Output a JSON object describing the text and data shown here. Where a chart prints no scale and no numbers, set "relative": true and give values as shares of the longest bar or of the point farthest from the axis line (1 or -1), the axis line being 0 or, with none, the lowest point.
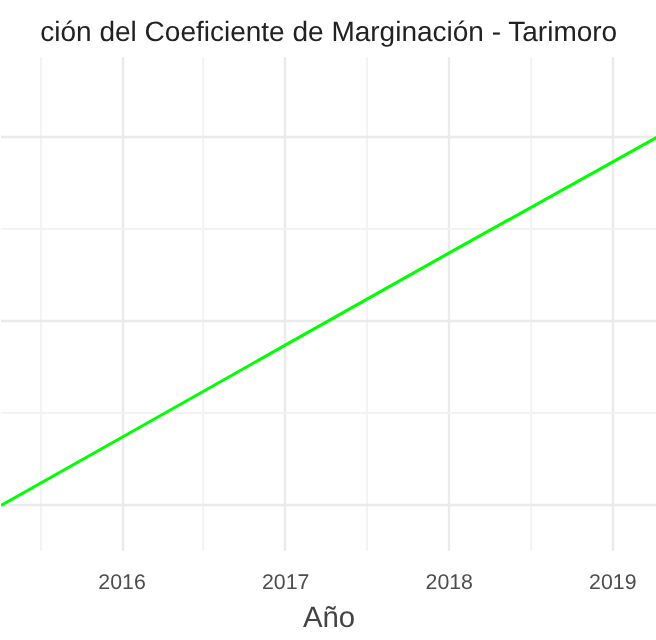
{
  "chart_data": {
    "type": "line",
    "title": "ción del Coeficiente de Marginación - Tarimoro",
    "xlabel": "Año",
    "relative": true,
    "x": [
      2015.26,
      2016,
      2017,
      2018,
      2019,
      2019.27
    ],
    "series": [
      {
        "color": "#00ff00",
        "values": [
          0,
          0.185,
          0.436,
          0.686,
          0.933,
          1
        ]
      }
    ],
    "xlim": [
      2015.26,
      2019.27
    ],
    "xticks": [
      2016,
      2017,
      2018,
      2019
    ],
    "grid": true
  }
}
